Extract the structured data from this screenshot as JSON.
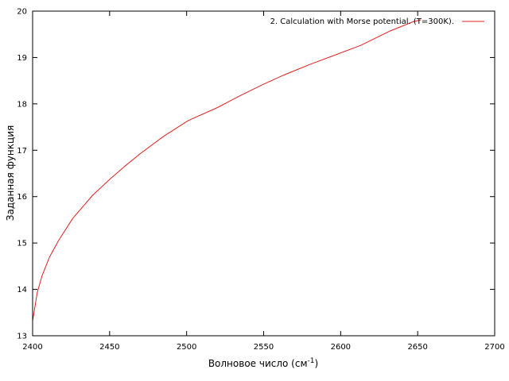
{
  "chart_data": {
    "type": "line",
    "xlabel": "Волновое число (см",
    "xlabel_sup": "-1",
    "xlabel_suffix": ")",
    "ylabel": "Заданная функция",
    "xlim": [
      2400,
      2700
    ],
    "ylim": [
      13,
      20
    ],
    "xticks": [
      2400,
      2450,
      2500,
      2550,
      2600,
      2650,
      2700
    ],
    "yticks": [
      13,
      14,
      15,
      16,
      17,
      18,
      19,
      20
    ],
    "grid": false,
    "legend_position": "top-right",
    "series": [
      {
        "name": "2. Calculation with Morse potential. (T=300K).",
        "color": "#e02020",
        "x": [
          2400,
          2403,
          2406,
          2411,
          2417,
          2426,
          2439,
          2451,
          2460,
          2470,
          2485,
          2501,
          2520,
          2535,
          2549,
          2563,
          2580,
          2597,
          2613,
          2632,
          2647,
          2652
        ],
        "y": [
          13.32,
          13.93,
          14.28,
          14.7,
          15.06,
          15.53,
          16.03,
          16.4,
          16.66,
          16.93,
          17.3,
          17.64,
          17.92,
          18.18,
          18.41,
          18.62,
          18.85,
          19.06,
          19.26,
          19.57,
          19.77,
          19.81
        ]
      }
    ]
  }
}
